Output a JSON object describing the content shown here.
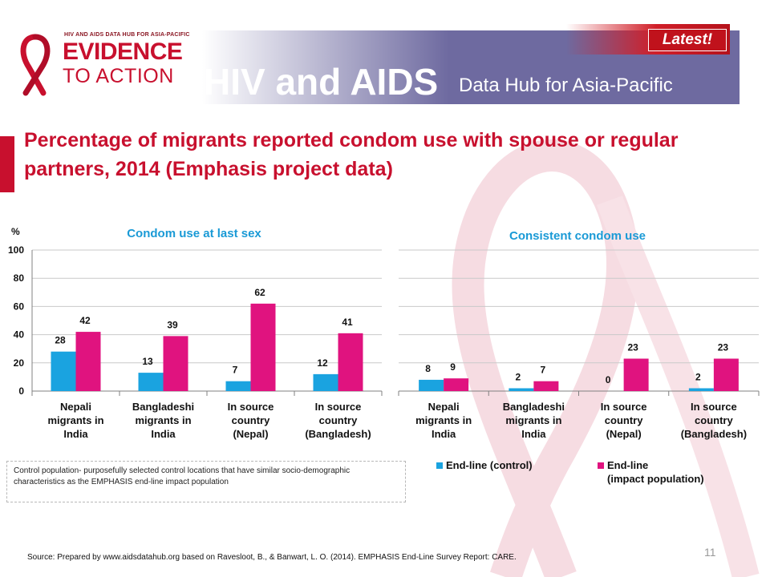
{
  "header": {
    "logo_small_text": "HIV AND AIDS DATA HUB FOR ASIA-PACIFIC",
    "logo_evidence": "EVIDENCE",
    "logo_action": "TO ACTION",
    "title": "HIV and AIDS",
    "subtitle": "Data Hub for Asia-Pacific",
    "badge": "Latest!"
  },
  "slide": {
    "title": "Percentage of migrants reported condom use with spouse or regular partners, 2014 (Emphasis project data)",
    "note": "Control population- purposefully selected control locations that have similar socio-demographic characteristics as the EMPHASIS end-line impact population",
    "source": "Source: Prepared by www.aidsdatahub.org  based on Ravesloot, B., & Banwart, L. O. (2014). EMPHASIS End-Line Survey Report: CARE.",
    "page_number": "11"
  },
  "colors": {
    "control": "#1aa3e0",
    "impact": "#e0137f",
    "title_red": "#c8102e",
    "chart_title_blue": "#1a9ad6",
    "header_purple": "#6e6aa0"
  },
  "chart_data": [
    {
      "type": "bar",
      "title": "Condom use at last sex",
      "ylabel": "%",
      "ylim": [
        0,
        100
      ],
      "yticks": [
        "0",
        "20",
        "40",
        "60",
        "80",
        "100"
      ],
      "categories": [
        [
          "Nepali",
          "migrants in",
          "India"
        ],
        [
          "Bangladeshi",
          "migrants in",
          "India"
        ],
        [
          "In source",
          "country",
          "(Nepal)"
        ],
        [
          "In source",
          "country",
          "(Bangladesh)"
        ]
      ],
      "series": [
        {
          "name": "End-line (control)",
          "values": [
            28,
            13,
            7,
            12
          ]
        },
        {
          "name": "End-line (impact population)",
          "values": [
            42,
            39,
            62,
            41
          ]
        }
      ]
    },
    {
      "type": "bar",
      "title": "Consistent condom use",
      "ylim": [
        0,
        100
      ],
      "categories": [
        [
          "Nepali",
          "migrants in",
          "India"
        ],
        [
          "Bangladeshi",
          "migrants in",
          "India"
        ],
        [
          "In source",
          "country",
          "(Nepal)"
        ],
        [
          "In source",
          "country",
          "(Bangladesh)"
        ]
      ],
      "series": [
        {
          "name": "End-line (control)",
          "values": [
            8,
            2,
            0,
            2
          ]
        },
        {
          "name": "End-line (impact population)",
          "values": [
            9,
            7,
            23,
            23
          ]
        }
      ],
      "legend": {
        "placement": "bottom",
        "items": [
          {
            "lines": [
              "End-line (control)"
            ]
          },
          {
            "lines": [
              "End-line",
              "(impact population)"
            ]
          }
        ]
      }
    }
  ]
}
